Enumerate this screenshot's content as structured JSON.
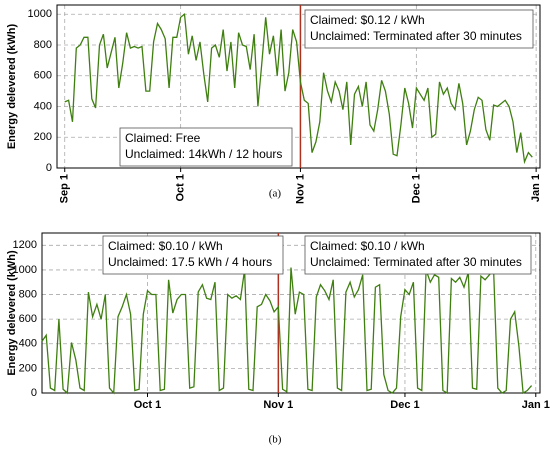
{
  "chart_data": [
    {
      "type": "line",
      "caption": "(a)",
      "ylabel": "Energy delevered (kWh)",
      "xlim": [
        -2,
        123
      ],
      "ylim": [
        0,
        1060
      ],
      "xticks": [
        {
          "value": 0,
          "label": "Sep 1"
        },
        {
          "value": 30,
          "label": "Oct 1"
        },
        {
          "value": 61,
          "label": "Nov 1"
        },
        {
          "value": 91,
          "label": "Dec 1"
        },
        {
          "value": 122,
          "label": "Jan 1"
        }
      ],
      "xtick_rotation": 90,
      "yticks": [
        0,
        200,
        400,
        600,
        800,
        1000
      ],
      "grid": true,
      "vline": 61,
      "vline_color": "#b03020",
      "annotations": [
        [
          "Claimed: $0.12 / kWh",
          "Unclaimed: Terminated after 30 minutes"
        ],
        [
          "Claimed: Free",
          "Unclaimed: 14kWh / 12 hours"
        ]
      ],
      "series": [
        {
          "color": "#3f7f10",
          "x": [
            0,
            1,
            2,
            3,
            4,
            5,
            6,
            7,
            8,
            9,
            10,
            11,
            12,
            13,
            14,
            15,
            16,
            17,
            18,
            19,
            20,
            21,
            22,
            23,
            24,
            25,
            26,
            27,
            28,
            29,
            30,
            31,
            32,
            33,
            34,
            35,
            36,
            37,
            38,
            39,
            40,
            41,
            42,
            43,
            44,
            45,
            46,
            47,
            48,
            49,
            50,
            51,
            52,
            53,
            54,
            55,
            56,
            57,
            58,
            59,
            60,
            61,
            62,
            63,
            64,
            65,
            66,
            67,
            68,
            69,
            70,
            71,
            72,
            73,
            74,
            75,
            76,
            77,
            78,
            79,
            80,
            81,
            82,
            83,
            84,
            85,
            86,
            87,
            88,
            89,
            90,
            91,
            92,
            93,
            94,
            95,
            96,
            97,
            98,
            99,
            100,
            101,
            102,
            103,
            104,
            105,
            106,
            107,
            108,
            109,
            110,
            111,
            112,
            113,
            114,
            115,
            116,
            117,
            118,
            119,
            120,
            121
          ],
          "values": [
            430,
            440,
            300,
            780,
            800,
            850,
            850,
            450,
            390,
            800,
            870,
            650,
            750,
            850,
            520,
            680,
            880,
            780,
            790,
            780,
            790,
            500,
            500,
            820,
            940,
            900,
            840,
            520,
            850,
            850,
            980,
            1000,
            740,
            860,
            700,
            820,
            610,
            430,
            780,
            800,
            720,
            900,
            630,
            820,
            520,
            880,
            800,
            790,
            640,
            870,
            400,
            680,
            980,
            740,
            860,
            600,
            900,
            500,
            620,
            900,
            820,
            560,
            440,
            420,
            100,
            170,
            300,
            620,
            500,
            430,
            560,
            500,
            380,
            560,
            150,
            480,
            530,
            400,
            560,
            280,
            240,
            380,
            570,
            500,
            350,
            90,
            80,
            280,
            520,
            420,
            260,
            520,
            480,
            440,
            520,
            200,
            220,
            560,
            480,
            520,
            420,
            380,
            550,
            420,
            150,
            240,
            380,
            460,
            440,
            250,
            180,
            410,
            400,
            420,
            440,
            400,
            300,
            100,
            230,
            40,
            100,
            70
          ]
        }
      ]
    },
    {
      "type": "line",
      "caption": "(b)",
      "ylabel": "Energy delevered (kWh)",
      "xlim": [
        5,
        123
      ],
      "ylim": [
        0,
        1300
      ],
      "xticks": [
        {
          "value": 30,
          "label": "Oct 1"
        },
        {
          "value": 61,
          "label": "Nov 1"
        },
        {
          "value": 91,
          "label": "Dec 1"
        },
        {
          "value": 122,
          "label": "Jan 1"
        }
      ],
      "xtick_rotation": 0,
      "yticks": [
        0,
        200,
        400,
        600,
        800,
        1000,
        1200
      ],
      "grid": true,
      "vline": 61,
      "vline_color": "#b03020",
      "annotations": [
        [
          "Claimed: $0.10 / kWh",
          "Unclaimed: 17.5 kWh / 4 hours"
        ],
        [
          "Claimed: $0.10 / kWh",
          "Unclaimed: Terminated after 30 minutes"
        ]
      ],
      "series": [
        {
          "color": "#3f7f10",
          "x": [
            5,
            6,
            7,
            8,
            9,
            10,
            11,
            12,
            13,
            14,
            15,
            16,
            17,
            18,
            19,
            20,
            21,
            22,
            23,
            24,
            25,
            26,
            27,
            28,
            29,
            30,
            31,
            32,
            33,
            34,
            35,
            36,
            37,
            38,
            39,
            40,
            41,
            42,
            43,
            44,
            45,
            46,
            47,
            48,
            49,
            50,
            51,
            52,
            53,
            54,
            55,
            56,
            57,
            58,
            59,
            60,
            61,
            62,
            63,
            64,
            65,
            66,
            67,
            68,
            69,
            70,
            71,
            72,
            73,
            74,
            75,
            76,
            77,
            78,
            79,
            80,
            81,
            82,
            83,
            84,
            85,
            86,
            87,
            88,
            89,
            90,
            91,
            92,
            93,
            94,
            95,
            96,
            97,
            98,
            99,
            100,
            101,
            102,
            103,
            104,
            105,
            106,
            107,
            108,
            109,
            110,
            111,
            112,
            113,
            114,
            115,
            116,
            117,
            118,
            119,
            120,
            121
          ],
          "values": [
            420,
            470,
            40,
            20,
            600,
            30,
            0,
            410,
            270,
            40,
            20,
            820,
            620,
            720,
            600,
            800,
            40,
            0,
            620,
            700,
            800,
            640,
            20,
            30,
            640,
            830,
            800,
            800,
            20,
            30,
            920,
            650,
            760,
            800,
            800,
            40,
            50,
            820,
            880,
            770,
            760,
            900,
            20,
            40,
            800,
            770,
            790,
            760,
            1000,
            30,
            20,
            700,
            720,
            800,
            750,
            660,
            700,
            30,
            10,
            1020,
            640,
            820,
            800,
            30,
            20,
            780,
            880,
            830,
            760,
            920,
            40,
            20,
            820,
            900,
            780,
            840,
            960,
            20,
            30,
            860,
            880,
            150,
            20,
            0,
            40,
            620,
            840,
            800,
            900,
            40,
            20,
            1000,
            900,
            960,
            940,
            20,
            0,
            930,
            900,
            940,
            860,
            980,
            40,
            30,
            950,
            920,
            960,
            1000,
            40,
            0,
            20,
            600,
            660,
            380,
            0,
            20,
            60
          ]
        }
      ]
    }
  ]
}
